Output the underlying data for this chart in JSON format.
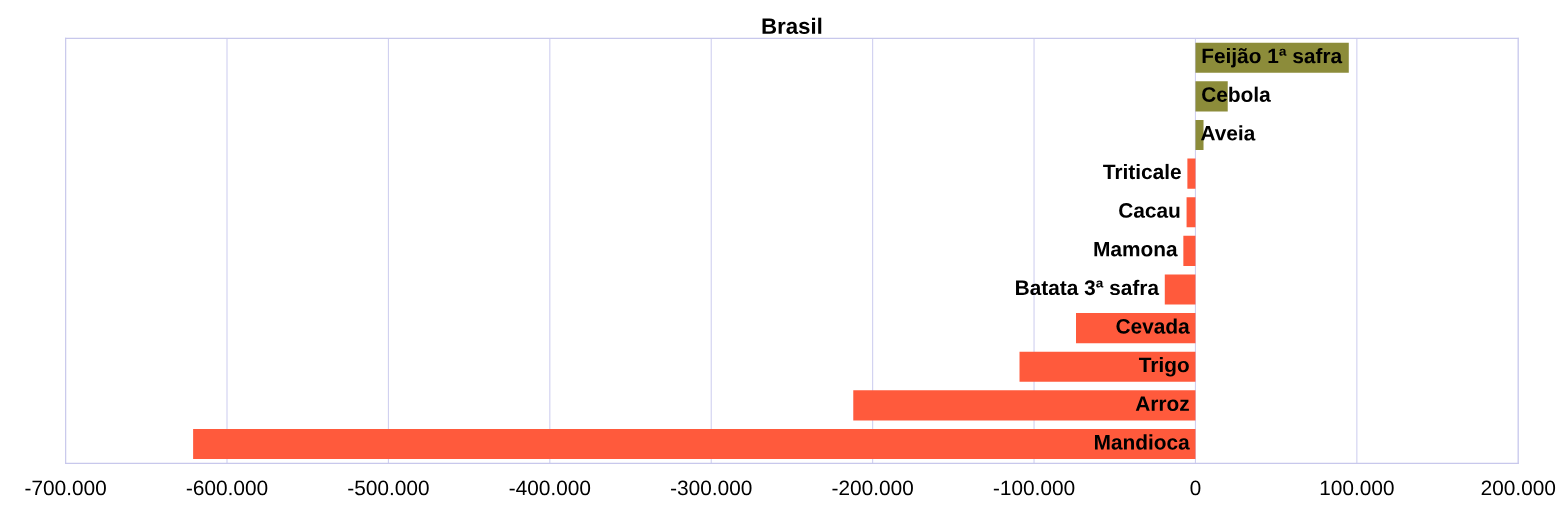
{
  "chart_data": {
    "type": "bar",
    "orientation": "horizontal",
    "title": "Brasil",
    "categories": [
      "Feijão 1ª safra",
      "Cebola",
      "Aveia",
      "Triticale",
      "Cacau",
      "Mamona",
      "Batata 3ª safra",
      "Cevada",
      "Trigo",
      "Arroz",
      "Mandioca"
    ],
    "values": [
      95000,
      20000,
      5000,
      -5000,
      -5500,
      -7500,
      -19000,
      -74000,
      -109000,
      -212000,
      -621000
    ],
    "colors": [
      "#8c8c3a",
      "#8c8c3a",
      "#8c8c3a",
      "#ff5a3c",
      "#ff5a3c",
      "#ff5a3c",
      "#ff5a3c",
      "#ff5a3c",
      "#ff5a3c",
      "#ff5a3c",
      "#ff5a3c"
    ],
    "xlim": [
      -700000,
      200000
    ],
    "xticks": [
      {
        "value": -700000,
        "label": "-700.000"
      },
      {
        "value": -600000,
        "label": "-600.000"
      },
      {
        "value": -500000,
        "label": "-500.000"
      },
      {
        "value": -400000,
        "label": "-400.000"
      },
      {
        "value": -300000,
        "label": "-300.000"
      },
      {
        "value": -200000,
        "label": "-200.000"
      },
      {
        "value": -100000,
        "label": "-100.000"
      },
      {
        "value": 0,
        "label": "0"
      },
      {
        "value": 100000,
        "label": "100.000"
      },
      {
        "value": 200000,
        "label": "200.000"
      }
    ],
    "grid": "x"
  }
}
